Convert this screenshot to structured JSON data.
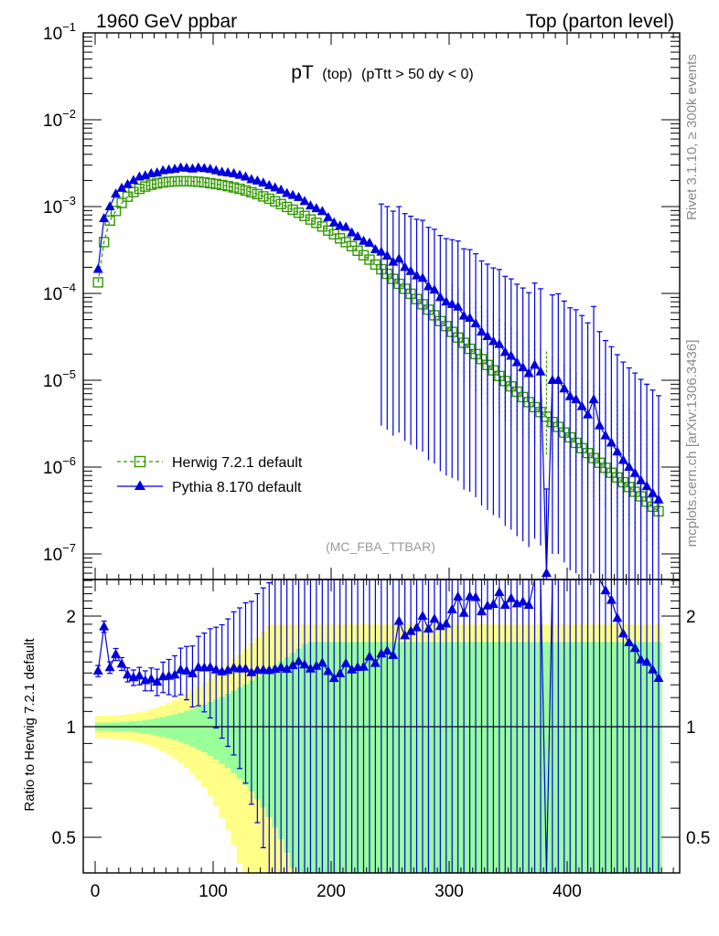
{
  "header": {
    "left": "1960 GeV ppbar",
    "right": "Top (parton level)"
  },
  "side_text": {
    "rivet": "Rivet 3.1.10, ≥ 300k events",
    "mcplots": "mcplots.cern.ch [arXiv:1306.3436]"
  },
  "chart_data": {
    "type": "scatter",
    "title": "pT (top) (pTtt > 50 dy < 0)",
    "title_main": "pT",
    "title_sub1": "(top)",
    "title_sub2": "(pTtt > 50 dy < 0)",
    "watermark": "(MC_FBA_TTBAR)",
    "xlabel": "",
    "ylabel_main": "",
    "ylabel_ratio": "Ratio to Herwig 7.2.1 default",
    "xlim": [
      -10,
      490
    ],
    "ylim_main": [
      5e-08,
      0.1
    ],
    "ylim_ratio": [
      0.42,
      2.38
    ],
    "yscale_main": "log",
    "yscale_ratio": "log",
    "x_ticks": [
      "0",
      "100",
      "200",
      "300",
      "400"
    ],
    "main_y_ticks": [
      {
        "value": 0.1,
        "mantissa": "10",
        "exp": "−1"
      },
      {
        "value": 0.01,
        "mantissa": "10",
        "exp": "−2"
      },
      {
        "value": 0.001,
        "mantissa": "10",
        "exp": "−3"
      },
      {
        "value": 0.0001,
        "mantissa": "10",
        "exp": "−4"
      },
      {
        "value": 1e-05,
        "mantissa": "10",
        "exp": "−5"
      },
      {
        "value": 1e-06,
        "mantissa": "10",
        "exp": "−6"
      },
      {
        "value": 1e-07,
        "mantissa": "10",
        "exp": "−7"
      }
    ],
    "ratio_y_ticks": [
      {
        "value": 2,
        "label": "2"
      },
      {
        "value": 1,
        "label": "1"
      },
      {
        "value": 0.5,
        "label": "0.5"
      }
    ],
    "legend_position": "lower-left",
    "series": [
      {
        "name": "Herwig 7.2.1 default",
        "color": "#339900",
        "marker": "open-square",
        "linestyle": "dashed",
        "x": [
          2.5,
          7.5,
          12.5,
          17.5,
          22.5,
          27.5,
          32.5,
          37.5,
          42.5,
          47.5,
          52.5,
          57.5,
          62.5,
          67.5,
          72.5,
          77.5,
          82.5,
          87.5,
          92.5,
          97.5,
          102.5,
          107.5,
          112.5,
          117.5,
          122.5,
          127.5,
          132.5,
          137.5,
          142.5,
          147.5,
          152.5,
          157.5,
          162.5,
          167.5,
          172.5,
          177.5,
          182.5,
          187.5,
          192.5,
          197.5,
          202.5,
          207.5,
          212.5,
          217.5,
          222.5,
          227.5,
          232.5,
          237.5,
          242.5,
          247.5,
          252.5,
          257.5,
          262.5,
          267.5,
          272.5,
          277.5,
          282.5,
          287.5,
          292.5,
          297.5,
          302.5,
          307.5,
          312.5,
          317.5,
          322.5,
          327.5,
          332.5,
          337.5,
          342.5,
          347.5,
          352.5,
          357.5,
          362.5,
          367.5,
          372.5,
          377.5,
          382.5,
          387.5,
          392.5,
          397.5,
          402.5,
          407.5,
          412.5,
          417.5,
          422.5,
          427.5,
          432.5,
          437.5,
          442.5,
          447.5,
          452.5,
          457.5,
          462.5,
          467.5,
          472.5,
          477.5
        ],
        "y": [
          0.000134,
          0.00039,
          0.00069,
          0.00089,
          0.0011,
          0.0013,
          0.00147,
          0.0016,
          0.0017,
          0.00178,
          0.00185,
          0.0019,
          0.00193,
          0.00195,
          0.00196,
          0.00196,
          0.00195,
          0.00193,
          0.0019,
          0.00186,
          0.00182,
          0.00177,
          0.00172,
          0.00166,
          0.0016,
          0.00153,
          0.00146,
          0.00139,
          0.00131,
          0.00123,
          0.00115,
          0.00107,
          0.00099,
          0.00092,
          0.00085,
          0.00078,
          0.00071,
          0.00065,
          0.00059,
          0.00053,
          0.00048,
          0.00043,
          0.00039,
          0.00035,
          0.00031,
          0.000275,
          0.000245,
          0.000215,
          0.00019,
          0.000168,
          0.000147,
          0.000129,
          0.000113,
          9.9e-05,
          8.6e-05,
          7.5e-05,
          6.5e-05,
          5.6e-05,
          4.8e-05,
          4.2e-05,
          3.6e-05,
          3.1e-05,
          2.7e-05,
          2.3e-05,
          2e-05,
          1.75e-05,
          1.5e-05,
          1.3e-05,
          1.12e-05,
          9.8e-06,
          8.5e-06,
          7.4e-06,
          6.4e-06,
          5.6e-06,
          4.9e-06,
          4.3e-06,
          3.8e-06,
          3.3e-06,
          2.9e-06,
          2.5e-06,
          2.2e-06,
          1.9e-06,
          1.65e-06,
          1.45e-06,
          1.27e-06,
          1.12e-06,
          9.8e-07,
          8.6e-07,
          7.6e-07,
          6.7e-07,
          5.9e-07,
          5.2e-07,
          4.6e-07,
          4e-07,
          3.5e-07,
          3.1e-07
        ]
      },
      {
        "name": "Pythia 8.170 default",
        "color": "#0000dd",
        "marker": "filled-triangle",
        "linestyle": "solid",
        "x": [
          2.5,
          7.5,
          12.5,
          17.5,
          22.5,
          27.5,
          32.5,
          37.5,
          42.5,
          47.5,
          52.5,
          57.5,
          62.5,
          67.5,
          72.5,
          77.5,
          82.5,
          87.5,
          92.5,
          97.5,
          102.5,
          107.5,
          112.5,
          117.5,
          122.5,
          127.5,
          132.5,
          137.5,
          142.5,
          147.5,
          152.5,
          157.5,
          162.5,
          167.5,
          172.5,
          177.5,
          182.5,
          187.5,
          192.5,
          197.5,
          202.5,
          207.5,
          212.5,
          217.5,
          222.5,
          227.5,
          232.5,
          237.5,
          242.5,
          247.5,
          252.5,
          257.5,
          262.5,
          267.5,
          272.5,
          277.5,
          282.5,
          287.5,
          292.5,
          297.5,
          302.5,
          307.5,
          312.5,
          317.5,
          322.5,
          327.5,
          332.5,
          337.5,
          342.5,
          347.5,
          352.5,
          357.5,
          362.5,
          367.5,
          372.5,
          377.5,
          382.5,
          387.5,
          392.5,
          397.5,
          402.5,
          407.5,
          412.5,
          417.5,
          422.5,
          427.5,
          432.5,
          437.5,
          442.5,
          447.5,
          452.5,
          457.5,
          462.5,
          467.5,
          472.5,
          477.5
        ],
        "y": [
          0.00019,
          0.00073,
          0.001,
          0.0014,
          0.00163,
          0.0018,
          0.002,
          0.0022,
          0.00227,
          0.0024,
          0.00245,
          0.0026,
          0.00265,
          0.0027,
          0.0028,
          0.00278,
          0.00272,
          0.0028,
          0.00275,
          0.0027,
          0.0026,
          0.0025,
          0.00245,
          0.0024,
          0.0023,
          0.0022,
          0.00205,
          0.00198,
          0.00187,
          0.00175,
          0.00165,
          0.00155,
          0.00142,
          0.00135,
          0.00128,
          0.00115,
          0.00102,
          0.00095,
          0.00088,
          0.00075,
          0.00065,
          0.0006,
          0.00058,
          0.0005,
          0.00045,
          0.0004,
          0.00038,
          0.00032,
          0.0003,
          0.00027,
          0.00023,
          0.00025,
          0.0002,
          0.00018,
          0.00016,
          0.00015,
          0.00012,
          0.00011,
          9e-05,
          8e-05,
          7.5e-05,
          7e-05,
          5.5e-05,
          5.2e-05,
          4.5e-05,
          3.6e-05,
          3.2e-05,
          2.8e-05,
          2.6e-05,
          2.1e-05,
          1.9e-05,
          1.6e-05,
          1.4e-05,
          1.2e-05,
          1.5e-05,
          1.25e-05,
          6e-08,
          1e-05,
          1e-05,
          8e-06,
          6.5e-06,
          6e-06,
          5e-06,
          4e-06,
          6e-06,
          3e-06,
          2.3e-06,
          1.9e-06,
          1.5e-06,
          1.2e-06,
          1e-06,
          8.5e-07,
          7e-07,
          6e-07,
          5e-07,
          4.2e-07
        ]
      }
    ]
  }
}
